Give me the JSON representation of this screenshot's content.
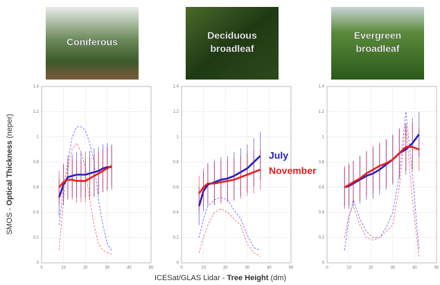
{
  "y_label": [
    "SMOS - ",
    "Optical Thickness",
    " (neper)"
  ],
  "x_label": [
    "ICESat/GLAS Lidar - ",
    "Tree Height",
    " (dm)"
  ],
  "chart_data": [
    {
      "type": "line",
      "title": [
        "Coniferous"
      ],
      "xlim": [
        0,
        50
      ],
      "xticks": [
        0,
        10,
        20,
        30,
        40,
        50
      ],
      "ylim": [
        0,
        1.4
      ],
      "yticks": [
        0,
        0.2,
        0.4,
        0.6,
        0.8,
        1,
        1.2,
        1.4
      ],
      "grid": true,
      "series": [
        {
          "color": "#6a6aff",
          "dashed": true,
          "x": [
            8,
            10,
            12,
            14,
            16,
            18,
            20,
            22,
            24,
            26,
            28,
            30,
            32
          ],
          "values": [
            0.3,
            0.6,
            0.8,
            1.0,
            1.08,
            1.08,
            1.05,
            0.95,
            0.8,
            0.5,
            0.3,
            0.15,
            0.1
          ]
        },
        {
          "color": "#ff6a6a",
          "dashed": true,
          "x": [
            8,
            10,
            12,
            14,
            16,
            18,
            20,
            22,
            24,
            26,
            28,
            30,
            32
          ],
          "values": [
            0.1,
            0.5,
            0.75,
            0.9,
            0.95,
            0.88,
            0.75,
            0.5,
            0.3,
            0.15,
            0.1,
            0.08,
            0.07
          ]
        },
        {
          "name": "July",
          "color": "#1c1cc8",
          "x": [
            8,
            10,
            12,
            14,
            16,
            18,
            20,
            22,
            24,
            26,
            28,
            30,
            32
          ],
          "values": [
            0.52,
            0.62,
            0.68,
            0.69,
            0.7,
            0.7,
            0.7,
            0.71,
            0.72,
            0.73,
            0.75,
            0.76,
            0.76
          ],
          "errors": [
            0.15,
            0.16,
            0.17,
            0.17,
            0.18,
            0.18,
            0.18,
            0.18,
            0.19,
            0.19,
            0.19,
            0.19,
            0.18
          ]
        },
        {
          "name": "November",
          "color": "#e81c1c",
          "x": [
            8,
            10,
            12,
            14,
            16,
            18,
            20,
            22,
            24,
            26,
            28,
            30,
            32
          ],
          "values": [
            0.6,
            0.64,
            0.66,
            0.66,
            0.65,
            0.65,
            0.65,
            0.67,
            0.69,
            0.71,
            0.73,
            0.75,
            0.77
          ],
          "errors": [
            0.13,
            0.15,
            0.16,
            0.16,
            0.17,
            0.17,
            0.17,
            0.17,
            0.17,
            0.17,
            0.17,
            0.17,
            0.16
          ]
        }
      ]
    },
    {
      "type": "line",
      "title": [
        "Deciduous",
        "broadleaf"
      ],
      "xlim": [
        0,
        50
      ],
      "xticks": [
        0,
        10,
        20,
        30,
        40,
        50
      ],
      "ylim": [
        0,
        1.4
      ],
      "yticks": [
        0,
        0.2,
        0.4,
        0.6,
        0.8,
        1,
        1.2,
        1.4
      ],
      "grid": true,
      "legend": "right",
      "series": [
        {
          "color": "#6a6aff",
          "dashed": true,
          "x": [
            8,
            10,
            12,
            15,
            18,
            21,
            24,
            27,
            30,
            33,
            36
          ],
          "values": [
            0.2,
            0.35,
            0.45,
            0.5,
            0.52,
            0.5,
            0.42,
            0.35,
            0.22,
            0.12,
            0.1
          ]
        },
        {
          "color": "#ff6a6a",
          "dashed": true,
          "x": [
            8,
            10,
            12,
            15,
            18,
            21,
            24,
            27,
            30,
            33,
            36
          ],
          "values": [
            0.08,
            0.2,
            0.3,
            0.4,
            0.43,
            0.4,
            0.35,
            0.3,
            0.15,
            0.08,
            0.05
          ]
        },
        {
          "name": "July",
          "color": "#1c1cc8",
          "x": [
            8,
            10,
            12,
            15,
            18,
            21,
            24,
            27,
            30,
            33,
            36
          ],
          "values": [
            0.45,
            0.57,
            0.62,
            0.64,
            0.66,
            0.67,
            0.69,
            0.72,
            0.75,
            0.8,
            0.85
          ],
          "errors": [
            0.15,
            0.16,
            0.17,
            0.18,
            0.18,
            0.18,
            0.19,
            0.19,
            0.19,
            0.19,
            0.19
          ]
        },
        {
          "name": "November",
          "color": "#e81c1c",
          "x": [
            8,
            10,
            12,
            15,
            18,
            21,
            24,
            27,
            30,
            33,
            36
          ],
          "values": [
            0.55,
            0.6,
            0.63,
            0.63,
            0.64,
            0.65,
            0.66,
            0.68,
            0.7,
            0.72,
            0.74
          ],
          "errors": [
            0.14,
            0.15,
            0.16,
            0.17,
            0.17,
            0.17,
            0.17,
            0.17,
            0.17,
            0.17,
            0.16
          ]
        }
      ]
    },
    {
      "type": "line",
      "title": [
        "Evergreen",
        "broadleaf"
      ],
      "xlim": [
        0,
        50
      ],
      "xticks": [
        0,
        10,
        20,
        30,
        40,
        50
      ],
      "ylim": [
        0,
        1.4
      ],
      "yticks": [
        0,
        0.2,
        0.4,
        0.6,
        0.8,
        1,
        1.2,
        1.4
      ],
      "grid": true,
      "series": [
        {
          "color": "#6a6aff",
          "dashed": true,
          "x": [
            8,
            10,
            12,
            15,
            18,
            21,
            24,
            27,
            30,
            33,
            36,
            39,
            42
          ],
          "values": [
            0.1,
            0.35,
            0.5,
            0.35,
            0.25,
            0.2,
            0.2,
            0.28,
            0.4,
            0.7,
            1.2,
            0.7,
            0.1
          ]
        },
        {
          "color": "#ff6a6a",
          "dashed": true,
          "x": [
            8,
            10,
            12,
            15,
            18,
            21,
            24,
            27,
            30,
            33,
            36,
            39,
            42
          ],
          "values": [
            0.2,
            0.38,
            0.45,
            0.3,
            0.2,
            0.18,
            0.2,
            0.25,
            0.3,
            0.6,
            1.1,
            0.5,
            0.05
          ]
        },
        {
          "name": "July",
          "color": "#1c1cc8",
          "x": [
            8,
            10,
            12,
            15,
            18,
            21,
            24,
            27,
            30,
            33,
            36,
            39,
            42
          ],
          "values": [
            0.6,
            0.61,
            0.63,
            0.66,
            0.69,
            0.71,
            0.74,
            0.78,
            0.82,
            0.87,
            0.9,
            0.95,
            1.02
          ],
          "errors": [
            0.17,
            0.18,
            0.18,
            0.19,
            0.19,
            0.2,
            0.2,
            0.2,
            0.2,
            0.2,
            0.2,
            0.2,
            0.18
          ]
        },
        {
          "name": "November",
          "color": "#e81c1c",
          "x": [
            8,
            10,
            12,
            15,
            18,
            21,
            24,
            27,
            30,
            33,
            36,
            39,
            42
          ],
          "values": [
            0.6,
            0.62,
            0.64,
            0.67,
            0.71,
            0.74,
            0.77,
            0.79,
            0.82,
            0.87,
            0.92,
            0.92,
            0.9
          ],
          "errors": [
            0.15,
            0.16,
            0.17,
            0.18,
            0.18,
            0.19,
            0.19,
            0.19,
            0.19,
            0.19,
            0.19,
            0.19,
            0.17
          ]
        }
      ]
    }
  ]
}
